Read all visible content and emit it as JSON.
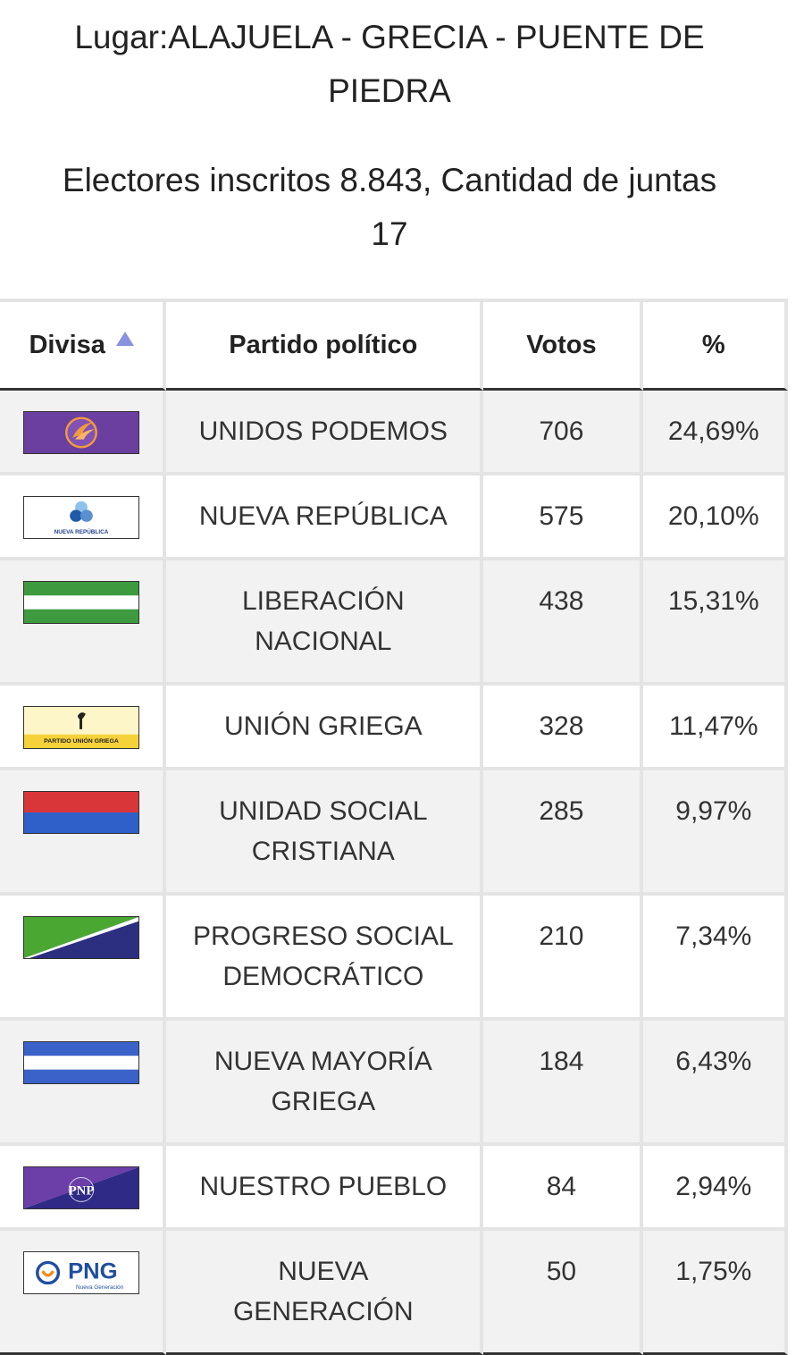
{
  "header": {
    "place_line1": "Lugar:ALAJUELA - GRECIA - PUENTE DE",
    "place_line2": "PIEDRA",
    "electors_line1": "Electores inscritos 8.843, Cantidad de juntas",
    "electors_line2": "17"
  },
  "table": {
    "columns": {
      "divisa": "Divisa",
      "partido": "Partido político",
      "votos": "Votos",
      "pct": "%"
    },
    "sort": {
      "column": "divisa",
      "direction": "ascending"
    },
    "rows": [
      {
        "party_line1": "UNIDOS PODEMOS",
        "party_line2": "",
        "votes": "706",
        "pct": "24,69%",
        "flag": "unidos-podemos-flag"
      },
      {
        "party_line1": "NUEVA REPÚBLICA",
        "party_line2": "",
        "votes": "575",
        "pct": "20,10%",
        "flag": "nueva-republica-flag",
        "logo_text": "NUEVA REPÚBLICA"
      },
      {
        "party_line1": "LIBERACIÓN",
        "party_line2": "NACIONAL",
        "votes": "438",
        "pct": "15,31%",
        "flag": "liberacion-nacional-flag"
      },
      {
        "party_line1": "UNIÓN GRIEGA",
        "party_line2": "",
        "votes": "328",
        "pct": "11,47%",
        "flag": "union-griega-flag",
        "logo_text": "PARTIDO UNIÓN GRIEGA"
      },
      {
        "party_line1": "UNIDAD SOCIAL",
        "party_line2": "CRISTIANA",
        "votes": "285",
        "pct": "9,97%",
        "flag": "unidad-social-cristiana-flag"
      },
      {
        "party_line1": "PROGRESO SOCIAL",
        "party_line2": "DEMOCRÁTICO",
        "votes": "210",
        "pct": "7,34%",
        "flag": "progreso-social-democratico-flag"
      },
      {
        "party_line1": "NUEVA MAYORÍA",
        "party_line2": "GRIEGA",
        "votes": "184",
        "pct": "6,43%",
        "flag": "nueva-mayoria-griega-flag"
      },
      {
        "party_line1": "NUESTRO PUEBLO",
        "party_line2": "",
        "votes": "84",
        "pct": "2,94%",
        "flag": "nuestro-pueblo-flag",
        "logo_text": "PNP"
      },
      {
        "party_line1": "NUEVA",
        "party_line2": "GENERACIÓN",
        "votes": "50",
        "pct": "1,75%",
        "flag": "nueva-generacion-flag",
        "logo_text": "PNG",
        "logo_subtext": "Nueva Generación"
      }
    ]
  },
  "colors": {
    "podemos_purple": "#6a3fa0",
    "podemos_orange": "#f39a3c",
    "liberacion_green": "#3d9a3f",
    "usc_red": "#d9363a",
    "usc_blue": "#2f5fc9",
    "psd_green": "#4aa832",
    "psd_navy": "#2c2e80",
    "nmg_blue": "#3b62c8",
    "pnp_purple": "#6b3ea8",
    "png_blue": "#1f4ea0",
    "png_orange": "#f18a1e",
    "sort_arrow": "#8a92e0"
  }
}
